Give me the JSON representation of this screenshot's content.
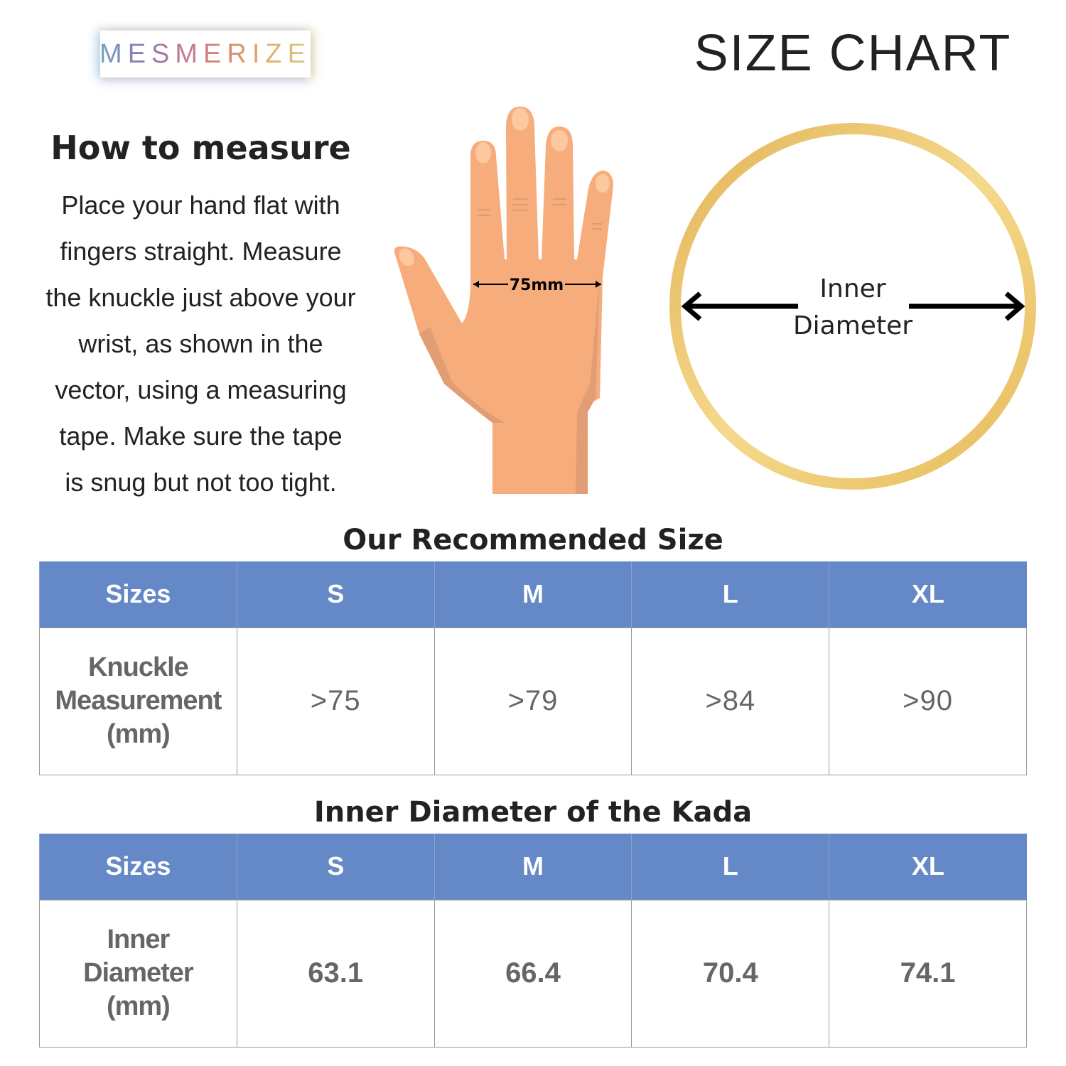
{
  "brand": "MESMERIZE",
  "title": "SIZE CHART",
  "how_to": {
    "heading": "How to measure",
    "lines": [
      "Place your hand flat with",
      "fingers straight. Measure",
      "the knuckle just above your",
      "wrist, as shown in the",
      "vector, using a measuring",
      "tape. Make sure the tape",
      "is snug but not too tight."
    ]
  },
  "hand_label": "75mm",
  "ring_label": {
    "line1": "Inner",
    "line2": "Diameter"
  },
  "colors": {
    "header": "#6589c6",
    "ring": "#e8c062",
    "skin": "#f6ad7b"
  },
  "table1": {
    "title": "Our Recommended Size",
    "headers": [
      "Sizes",
      "S",
      "M",
      "L",
      "XL"
    ],
    "row_label": [
      "Knuckle",
      "Measurement",
      "(mm)"
    ],
    "values": [
      ">75",
      ">79",
      ">84",
      ">90"
    ]
  },
  "table2": {
    "title": "Inner Diameter of the Kada",
    "headers": [
      "Sizes",
      "S",
      "M",
      "L",
      "XL"
    ],
    "row_label": [
      "Inner",
      "Diameter",
      "(mm)"
    ],
    "values": [
      "63.1",
      "66.4",
      "70.4",
      "74.1"
    ]
  }
}
